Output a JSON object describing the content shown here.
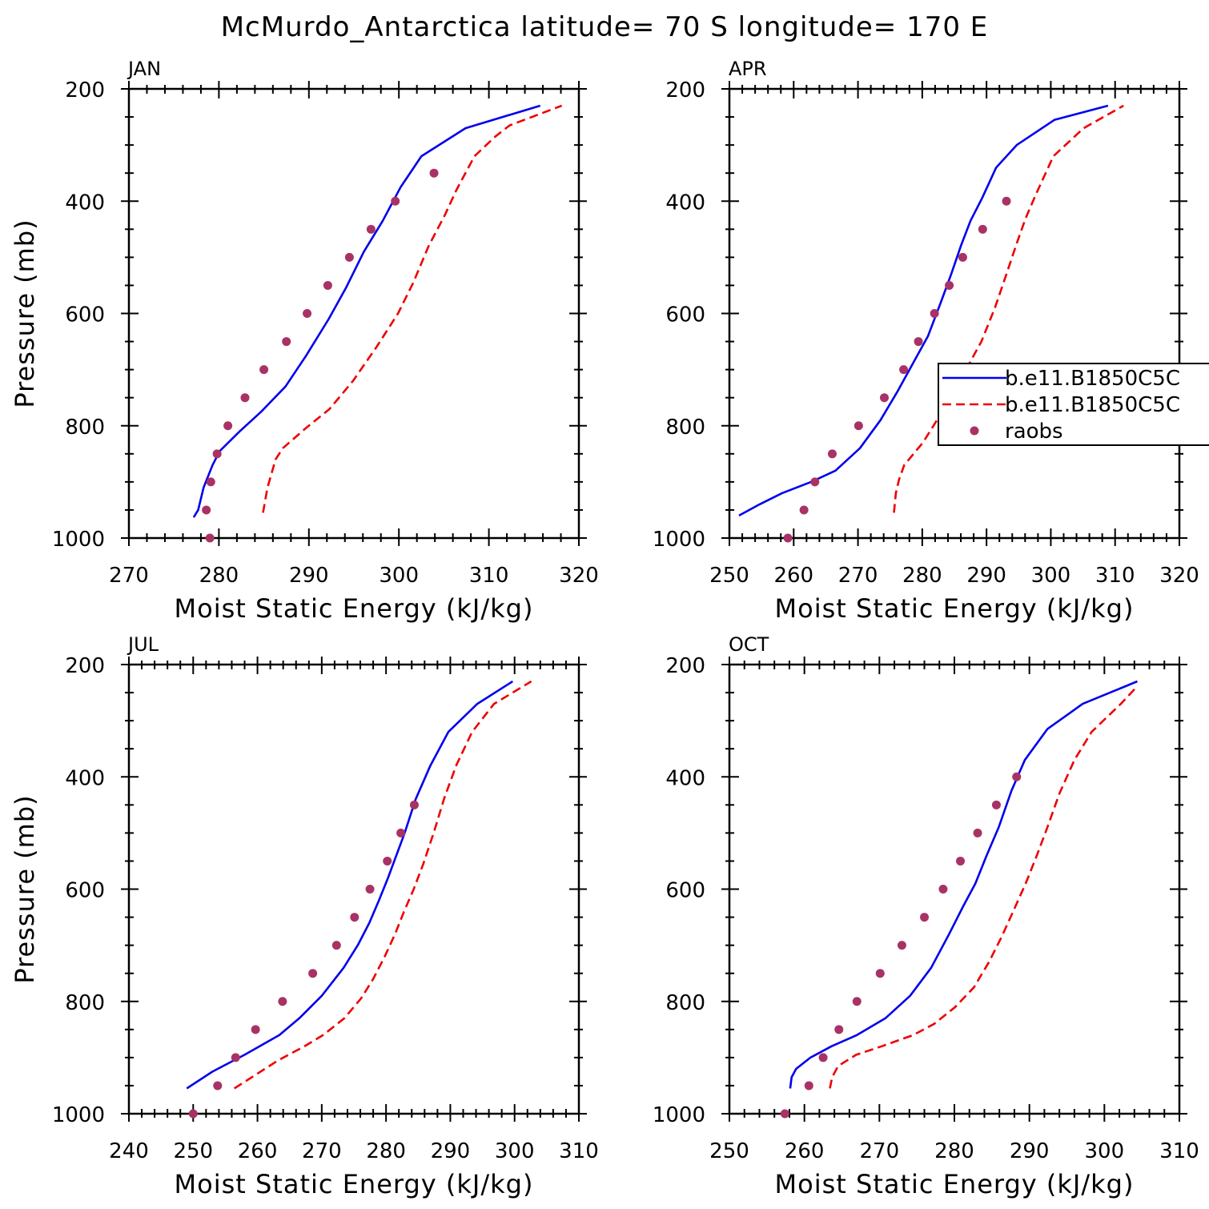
{
  "title": "McMurdo_Antarctica  latitude= 70 S longitude= 170 E",
  "colors": {
    "model1": "#0000ee",
    "model2": "#ee0000",
    "raobs": "#a83266"
  },
  "legend": {
    "entries": [
      {
        "name": "b.e11.B1850C5C",
        "style": "solid",
        "color": "#0000ee"
      },
      {
        "name": "b.e11.B1850C5C",
        "style": "dashed",
        "color": "#ee0000"
      },
      {
        "name": "raobs",
        "style": "dot",
        "color": "#a83266"
      }
    ]
  },
  "chart_data": [
    {
      "type": "line",
      "panel_label": "JAN",
      "xlabel": "Moist Static Energy (kJ/kg)",
      "ylabel": "Pressure (mb)",
      "xlim": [
        270,
        320
      ],
      "ylim": [
        1000,
        200
      ],
      "xticks": [
        270,
        280,
        290,
        300,
        310,
        320
      ],
      "yticks": [
        200,
        400,
        600,
        800,
        1000
      ],
      "series": [
        {
          "style": "solid",
          "color": "#0000ee",
          "points": [
            [
              277.2,
              963
            ],
            [
              277.7,
              950
            ],
            [
              278.3,
              910
            ],
            [
              279.3,
              870
            ],
            [
              280.1,
              845
            ],
            [
              282.3,
              810
            ],
            [
              284.7,
              775
            ],
            [
              287.4,
              730
            ],
            [
              289.7,
              675
            ],
            [
              292.2,
              610
            ],
            [
              294.1,
              555
            ],
            [
              296.1,
              490
            ],
            [
              298.2,
              435
            ],
            [
              300.2,
              375
            ],
            [
              302.5,
              320
            ],
            [
              307.4,
              270
            ],
            [
              315.7,
              230
            ]
          ]
        },
        {
          "style": "dashed",
          "color": "#ee0000",
          "points": [
            [
              284.9,
              955
            ],
            [
              285.4,
              910
            ],
            [
              286.3,
              860
            ],
            [
              287.1,
              840
            ],
            [
              289.6,
              805
            ],
            [
              292.3,
              770
            ],
            [
              294.9,
              720
            ],
            [
              297.5,
              660
            ],
            [
              299.9,
              600
            ],
            [
              301.6,
              545
            ],
            [
              303.3,
              480
            ],
            [
              305.1,
              425
            ],
            [
              306.4,
              380
            ],
            [
              308.4,
              320
            ],
            [
              310.7,
              285
            ],
            [
              312.3,
              265
            ],
            [
              318.1,
              230
            ]
          ]
        },
        {
          "style": "dot",
          "color": "#a83266",
          "points": [
            [
              279.0,
              1000
            ],
            [
              278.6,
              950
            ],
            [
              279.1,
              900
            ],
            [
              279.8,
              850
            ],
            [
              281.0,
              800
            ],
            [
              282.9,
              750
            ],
            [
              285.0,
              700
            ],
            [
              287.5,
              650
            ],
            [
              289.8,
              600
            ],
            [
              292.1,
              550
            ],
            [
              294.5,
              500
            ],
            [
              296.9,
              450
            ],
            [
              299.6,
              400
            ],
            [
              303.9,
              350
            ]
          ]
        }
      ]
    },
    {
      "type": "line",
      "panel_label": "APR",
      "xlabel": "Moist Static Energy (kJ/kg)",
      "ylabel": "Pressure (mb)",
      "xlim": [
        250,
        320
      ],
      "ylim": [
        1000,
        200
      ],
      "xticks": [
        250,
        260,
        270,
        280,
        290,
        300,
        310,
        320
      ],
      "yticks": [
        200,
        400,
        600,
        800,
        1000
      ],
      "series": [
        {
          "style": "solid",
          "color": "#0000ee",
          "points": [
            [
              251.5,
              960
            ],
            [
              254.7,
              940
            ],
            [
              258.2,
              920
            ],
            [
              262.7,
              900
            ],
            [
              266.5,
              880
            ],
            [
              270.3,
              840
            ],
            [
              273.5,
              790
            ],
            [
              276.1,
              740
            ],
            [
              278.5,
              690
            ],
            [
              280.9,
              640
            ],
            [
              282.9,
              580
            ],
            [
              284.5,
              530
            ],
            [
              286.0,
              480
            ],
            [
              287.5,
              435
            ],
            [
              289.3,
              395
            ],
            [
              291.5,
              340
            ],
            [
              294.7,
              300
            ],
            [
              300.6,
              255
            ],
            [
              308.9,
              230
            ]
          ]
        },
        {
          "style": "dashed",
          "color": "#ee0000",
          "points": [
            [
              275.6,
              955
            ],
            [
              275.9,
              920
            ],
            [
              276.4,
              895
            ],
            [
              277.2,
              870
            ],
            [
              280.1,
              830
            ],
            [
              282.3,
              790
            ],
            [
              284.5,
              750
            ],
            [
              286.8,
              700
            ],
            [
              289.2,
              650
            ],
            [
              291.3,
              590
            ],
            [
              293.1,
              530
            ],
            [
              294.7,
              475
            ],
            [
              296.1,
              430
            ],
            [
              297.6,
              390
            ],
            [
              300.4,
              320
            ],
            [
              305.1,
              270
            ],
            [
              311.3,
              230
            ]
          ]
        },
        {
          "style": "dot",
          "color": "#a83266",
          "points": [
            [
              259.1,
              1000
            ],
            [
              261.6,
              950
            ],
            [
              263.3,
              900
            ],
            [
              266.0,
              850
            ],
            [
              270.1,
              800
            ],
            [
              274.1,
              750
            ],
            [
              277.1,
              700
            ],
            [
              279.4,
              650
            ],
            [
              281.9,
              600
            ],
            [
              284.2,
              550
            ],
            [
              286.3,
              500
            ],
            [
              289.4,
              450
            ],
            [
              293.1,
              400
            ]
          ]
        }
      ]
    },
    {
      "type": "line",
      "panel_label": "JUL",
      "xlabel": "Moist Static Energy (kJ/kg)",
      "ylabel": "Pressure (mb)",
      "xlim": [
        240,
        310
      ],
      "ylim": [
        1000,
        200
      ],
      "xticks": [
        240,
        250,
        260,
        270,
        280,
        290,
        300,
        310
      ],
      "yticks": [
        200,
        400,
        600,
        800,
        1000
      ],
      "series": [
        {
          "style": "solid",
          "color": "#0000ee",
          "points": [
            [
              249.0,
              955
            ],
            [
              253.0,
              925
            ],
            [
              258.0,
              895
            ],
            [
              263.4,
              860
            ],
            [
              266.5,
              830
            ],
            [
              270.0,
              790
            ],
            [
              273.4,
              740
            ],
            [
              275.6,
              700
            ],
            [
              277.4,
              660
            ],
            [
              278.9,
              620
            ],
            [
              280.3,
              580
            ],
            [
              281.6,
              540
            ],
            [
              282.9,
              500
            ],
            [
              284.6,
              440
            ],
            [
              286.9,
              380
            ],
            [
              289.7,
              320
            ],
            [
              294.2,
              270
            ],
            [
              299.7,
              230
            ]
          ]
        },
        {
          "style": "dashed",
          "color": "#ee0000",
          "points": [
            [
              256.4,
              955
            ],
            [
              259.8,
              930
            ],
            [
              263.2,
              905
            ],
            [
              267.3,
              880
            ],
            [
              270.2,
              860
            ],
            [
              273.5,
              830
            ],
            [
              276.1,
              795
            ],
            [
              278.0,
              760
            ],
            [
              279.8,
              720
            ],
            [
              281.4,
              680
            ],
            [
              282.8,
              640
            ],
            [
              284.3,
              600
            ],
            [
              285.8,
              555
            ],
            [
              287.4,
              500
            ],
            [
              289.0,
              440
            ],
            [
              290.9,
              380
            ],
            [
              293.4,
              320
            ],
            [
              296.8,
              270
            ],
            [
              302.6,
              230
            ]
          ]
        },
        {
          "style": "dot",
          "color": "#a83266",
          "points": [
            [
              250.0,
              1000
            ],
            [
              253.8,
              950
            ],
            [
              256.6,
              900
            ],
            [
              259.7,
              850
            ],
            [
              263.9,
              800
            ],
            [
              268.6,
              750
            ],
            [
              272.3,
              700
            ],
            [
              275.1,
              650
            ],
            [
              277.5,
              600
            ],
            [
              280.2,
              550
            ],
            [
              282.3,
              500
            ],
            [
              284.4,
              450
            ]
          ]
        }
      ]
    },
    {
      "type": "line",
      "panel_label": "OCT",
      "xlabel": "Moist Static Energy (kJ/kg)",
      "ylabel": "Pressure (mb)",
      "xlim": [
        250,
        310
      ],
      "ylim": [
        1000,
        200
      ],
      "xticks": [
        250,
        260,
        270,
        280,
        290,
        300,
        310
      ],
      "yticks": [
        200,
        400,
        600,
        800,
        1000
      ],
      "series": [
        {
          "style": "solid",
          "color": "#0000ee",
          "points": [
            [
              258.1,
              955
            ],
            [
              258.3,
              935
            ],
            [
              258.9,
              920
            ],
            [
              260.8,
              900
            ],
            [
              263.6,
              880
            ],
            [
              267.0,
              860
            ],
            [
              270.8,
              830
            ],
            [
              274.1,
              790
            ],
            [
              276.9,
              740
            ],
            [
              279.3,
              680
            ],
            [
              281.2,
              630
            ],
            [
              282.8,
              590
            ],
            [
              284.3,
              540
            ],
            [
              285.9,
              490
            ],
            [
              287.6,
              425
            ],
            [
              289.4,
              370
            ],
            [
              292.4,
              315
            ],
            [
              297.1,
              270
            ],
            [
              304.4,
              230
            ]
          ]
        },
        {
          "style": "dashed",
          "color": "#ee0000",
          "points": [
            [
              263.4,
              955
            ],
            [
              263.7,
              935
            ],
            [
              264.5,
              915
            ],
            [
              266.9,
              895
            ],
            [
              270.3,
              880
            ],
            [
              274.5,
              860
            ],
            [
              277.3,
              840
            ],
            [
              280.1,
              810
            ],
            [
              282.6,
              775
            ],
            [
              284.6,
              730
            ],
            [
              286.3,
              685
            ],
            [
              288.0,
              635
            ],
            [
              289.5,
              590
            ],
            [
              291.0,
              540
            ],
            [
              292.4,
              490
            ],
            [
              294.0,
              430
            ],
            [
              296.0,
              370
            ],
            [
              298.3,
              320
            ],
            [
              302.2,
              270
            ],
            [
              304.3,
              240
            ]
          ]
        },
        {
          "style": "dot",
          "color": "#a83266",
          "points": [
            [
              257.4,
              1000
            ],
            [
              260.6,
              950
            ],
            [
              262.5,
              900
            ],
            [
              264.6,
              850
            ],
            [
              267.0,
              800
            ],
            [
              270.1,
              750
            ],
            [
              273.0,
              700
            ],
            [
              276.0,
              650
            ],
            [
              278.5,
              600
            ],
            [
              280.8,
              550
            ],
            [
              283.1,
              500
            ],
            [
              285.6,
              450
            ],
            [
              288.3,
              400
            ]
          ]
        }
      ]
    }
  ]
}
